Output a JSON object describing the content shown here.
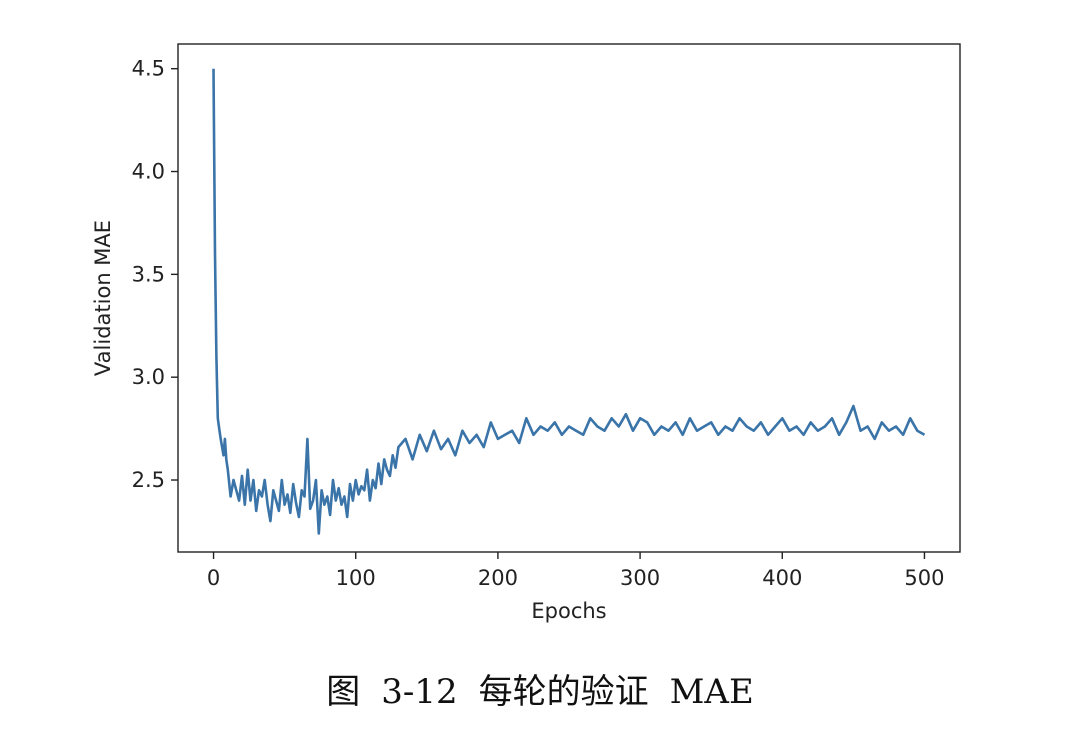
{
  "caption": "图 3-12   每轮的验证 MAE",
  "colors": {
    "line": "#3a74a8",
    "axis": "#222222",
    "background": "#ffffff"
  },
  "chart_data": {
    "type": "line",
    "xlabel": "Epochs",
    "ylabel": "Validation MAE",
    "xlim": [
      -25,
      525
    ],
    "ylim": [
      2.15,
      4.62
    ],
    "grid": false,
    "legend": "none",
    "xticks": [
      0,
      100,
      200,
      300,
      400,
      500
    ],
    "xtick_labels": [
      "0",
      "100",
      "200",
      "300",
      "400",
      "500"
    ],
    "yticks": [
      2.5,
      3.0,
      3.5,
      4.0,
      4.5
    ],
    "ytick_labels": [
      "2.5",
      "3.0",
      "3.5",
      "4.0",
      "4.5"
    ],
    "series": [
      {
        "x": [
          0,
          1,
          2,
          3,
          4,
          5,
          6,
          7,
          8,
          9,
          10,
          12,
          14,
          16,
          18,
          20,
          22,
          24,
          26,
          28,
          30,
          32,
          34,
          36,
          38,
          40,
          42,
          44,
          46,
          48,
          50,
          52,
          54,
          56,
          58,
          60,
          62,
          64,
          66,
          68,
          70,
          72,
          74,
          76,
          78,
          80,
          82,
          84,
          86,
          88,
          90,
          92,
          94,
          96,
          98,
          100,
          102,
          104,
          106,
          108,
          110,
          112,
          114,
          116,
          118,
          120,
          122,
          124,
          126,
          128,
          130,
          135,
          140,
          145,
          150,
          155,
          160,
          165,
          170,
          175,
          180,
          185,
          190,
          195,
          200,
          205,
          210,
          215,
          220,
          225,
          230,
          235,
          240,
          245,
          250,
          255,
          260,
          265,
          270,
          275,
          280,
          285,
          290,
          295,
          300,
          305,
          310,
          315,
          320,
          325,
          330,
          335,
          340,
          345,
          350,
          355,
          360,
          365,
          370,
          375,
          380,
          385,
          390,
          395,
          400,
          405,
          410,
          415,
          420,
          425,
          430,
          435,
          440,
          445,
          450,
          455,
          460,
          465,
          470,
          475,
          480,
          485,
          490,
          495,
          500
        ],
        "y": [
          4.5,
          3.6,
          3.1,
          2.8,
          2.75,
          2.7,
          2.66,
          2.62,
          2.7,
          2.6,
          2.55,
          2.42,
          2.5,
          2.45,
          2.4,
          2.52,
          2.38,
          2.55,
          2.4,
          2.5,
          2.35,
          2.45,
          2.42,
          2.5,
          2.38,
          2.3,
          2.45,
          2.4,
          2.35,
          2.5,
          2.38,
          2.43,
          2.34,
          2.48,
          2.39,
          2.32,
          2.45,
          2.42,
          2.7,
          2.36,
          2.4,
          2.5,
          2.24,
          2.45,
          2.38,
          2.42,
          2.33,
          2.5,
          2.4,
          2.46,
          2.38,
          2.42,
          2.32,
          2.48,
          2.4,
          2.5,
          2.43,
          2.47,
          2.45,
          2.55,
          2.4,
          2.5,
          2.46,
          2.58,
          2.48,
          2.6,
          2.55,
          2.52,
          2.62,
          2.56,
          2.66,
          2.7,
          2.6,
          2.72,
          2.64,
          2.74,
          2.65,
          2.7,
          2.62,
          2.74,
          2.68,
          2.72,
          2.66,
          2.78,
          2.7,
          2.72,
          2.74,
          2.68,
          2.8,
          2.72,
          2.76,
          2.74,
          2.78,
          2.72,
          2.76,
          2.74,
          2.72,
          2.8,
          2.76,
          2.74,
          2.8,
          2.76,
          2.82,
          2.74,
          2.8,
          2.78,
          2.72,
          2.76,
          2.74,
          2.78,
          2.72,
          2.8,
          2.74,
          2.76,
          2.78,
          2.72,
          2.76,
          2.74,
          2.8,
          2.76,
          2.74,
          2.78,
          2.72,
          2.76,
          2.8,
          2.74,
          2.76,
          2.72,
          2.78,
          2.74,
          2.76,
          2.8,
          2.72,
          2.78,
          2.86,
          2.74,
          2.76,
          2.7,
          2.78,
          2.74,
          2.76,
          2.72,
          2.8,
          2.74,
          2.72
        ]
      }
    ]
  }
}
